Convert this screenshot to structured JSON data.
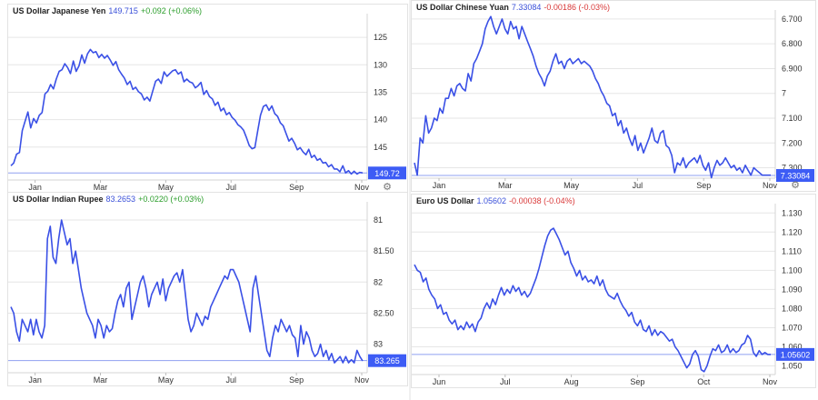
{
  "colors": {
    "line": "#3a50e6",
    "ref": "#8fa0f0",
    "badge": "#3d5cf5",
    "grid": "#e6e6e6",
    "axis": "#333333"
  },
  "icons": {
    "settings": "gear-icon"
  },
  "chart_data": [
    {
      "id": "jpy",
      "type": "line",
      "header": {
        "title": "US Dollar Japanese Yen",
        "price": "149.715",
        "change": "+0.092 (+0.06%)",
        "dir": "up"
      },
      "y_inverted": true,
      "ylim": [
        121.5,
        151
      ],
      "yticks": [
        125,
        130,
        135,
        140,
        145
      ],
      "ytick_labels": [
        "125",
        "130",
        "135",
        "140",
        "145"
      ],
      "x_ticks": [
        "Jan",
        "Mar",
        "May",
        "Jul",
        "Sep",
        "Nov"
      ],
      "last_badge": "149.72",
      "last_value": 149.72,
      "series": [
        {
          "values": [
            148.4,
            147.9,
            146.3,
            146.0,
            142.0,
            140.3,
            138.6,
            141.5,
            139.8,
            140.6,
            139.2,
            138.7,
            135.3,
            134.8,
            133.6,
            134.4,
            132.6,
            131.2,
            130.9,
            129.8,
            130.5,
            131.6,
            129.3,
            131.2,
            130.2,
            128.2,
            129.7,
            128.0,
            127.2,
            127.8,
            127.6,
            128.7,
            128.1,
            128.8,
            128.3,
            129.1,
            130.1,
            129.4,
            130.9,
            131.7,
            132.4,
            133.6,
            133.0,
            134.5,
            134.1,
            134.9,
            135.3,
            136.4,
            135.9,
            136.6,
            134.8,
            133.0,
            132.6,
            133.4,
            131.3,
            132.1,
            131.6,
            131.1,
            130.9,
            131.7,
            131.3,
            133.1,
            132.6,
            133.1,
            133.3,
            134.2,
            133.8,
            133.2,
            135.4,
            134.7,
            135.8,
            136.2,
            137.4,
            136.8,
            138.4,
            137.9,
            139.1,
            138.7,
            139.6,
            140.1,
            140.9,
            141.3,
            141.9,
            143.2,
            144.7,
            145.3,
            145.1,
            142.1,
            139.2,
            137.6,
            137.3,
            138.3,
            137.5,
            138.9,
            139.4,
            140.6,
            141.1,
            142.5,
            143.9,
            143.4,
            144.3,
            145.5,
            145.1,
            145.9,
            146.4,
            145.4,
            146.9,
            146.5,
            147.4,
            147.1,
            147.9,
            147.8,
            148.6,
            148.2,
            149.0,
            149.0,
            149.5,
            148.4,
            149.7,
            149.3,
            149.9,
            149.4,
            149.9,
            149.6,
            149.7
          ]
        }
      ]
    },
    {
      "id": "cny",
      "type": "line",
      "header": {
        "title": "US Dollar Chinese Yuan",
        "price": "7.33084",
        "change": "-0.00186 (-0.03%)",
        "dir": "down"
      },
      "y_inverted": true,
      "ylim": [
        6.682,
        7.342
      ],
      "yticks": [
        6.7,
        6.8,
        6.9,
        7.0,
        7.1,
        7.2,
        7.3
      ],
      "ytick_labels": [
        "6.700",
        "6.800",
        "6.900",
        "7",
        "7.100",
        "7.200",
        "7.300"
      ],
      "x_ticks": [
        "Jan",
        "Mar",
        "May",
        "Jul",
        "Sep",
        "Nov"
      ],
      "last_badge": "7.33084",
      "last_value": 7.331,
      "series": [
        {
          "values": [
            7.28,
            7.33,
            7.18,
            7.2,
            7.09,
            7.16,
            7.14,
            7.1,
            7.11,
            7.06,
            7.08,
            7.02,
            7.02,
            6.98,
            7.01,
            6.97,
            6.96,
            6.98,
            6.99,
            6.92,
            6.95,
            6.88,
            6.86,
            6.83,
            6.8,
            6.74,
            6.71,
            6.69,
            6.73,
            6.76,
            6.73,
            6.7,
            6.74,
            6.76,
            6.71,
            6.74,
            6.73,
            6.78,
            6.73,
            6.76,
            6.79,
            6.82,
            6.85,
            6.89,
            6.92,
            6.94,
            6.97,
            6.93,
            6.91,
            6.87,
            6.84,
            6.88,
            6.87,
            6.9,
            6.87,
            6.86,
            6.88,
            6.87,
            6.86,
            6.88,
            6.87,
            6.88,
            6.89,
            6.91,
            6.94,
            6.96,
            6.99,
            7.01,
            7.04,
            7.05,
            7.09,
            7.08,
            7.13,
            7.11,
            7.16,
            7.14,
            7.18,
            7.21,
            7.17,
            7.23,
            7.2,
            7.24,
            7.21,
            7.18,
            7.14,
            7.19,
            7.2,
            7.16,
            7.15,
            7.21,
            7.22,
            7.25,
            7.32,
            7.28,
            7.29,
            7.26,
            7.3,
            7.28,
            7.27,
            7.26,
            7.28,
            7.25,
            7.29,
            7.31,
            7.28,
            7.34,
            7.3,
            7.27,
            7.29,
            7.28,
            7.26,
            7.28,
            7.3,
            7.29,
            7.31,
            7.3,
            7.32,
            7.29,
            7.31,
            7.33,
            7.3,
            7.31,
            7.32,
            7.33,
            7.33,
            7.33,
            7.33
          ]
        }
      ]
    },
    {
      "id": "inr",
      "type": "line",
      "header": {
        "title": "US Dollar Indian Rupee",
        "price": "83.2653",
        "change": "+0.0220 (+0.03%)",
        "dir": "up"
      },
      "y_inverted": true,
      "ylim": [
        80.78,
        83.46
      ],
      "yticks": [
        81,
        81.5,
        82,
        82.5,
        83
      ],
      "ytick_labels": [
        "81",
        "81.50",
        "82",
        "82.50",
        "83"
      ],
      "x_ticks": [
        "Jan",
        "Mar",
        "May",
        "Jul",
        "Sep",
        "Nov"
      ],
      "last_badge": "83.265",
      "last_value": 83.265,
      "series": [
        {
          "values": [
            82.4,
            82.5,
            82.8,
            82.95,
            82.6,
            82.7,
            82.8,
            82.6,
            82.85,
            82.6,
            82.8,
            82.9,
            82.7,
            81.3,
            81.1,
            81.6,
            81.7,
            81.3,
            81.0,
            81.2,
            81.4,
            81.3,
            81.7,
            81.5,
            81.8,
            82.1,
            82.3,
            82.5,
            82.6,
            82.7,
            82.9,
            82.6,
            82.7,
            82.9,
            82.7,
            82.8,
            82.75,
            82.5,
            82.3,
            82.2,
            82.4,
            82.1,
            82.0,
            82.6,
            82.4,
            82.2,
            82.0,
            81.9,
            82.1,
            82.4,
            82.2,
            82.1,
            82.0,
            82.2,
            81.95,
            82.3,
            82.1,
            82.0,
            81.9,
            81.85,
            82.0,
            81.8,
            82.2,
            82.6,
            82.8,
            82.7,
            82.5,
            82.6,
            82.7,
            82.55,
            82.6,
            82.4,
            82.3,
            82.2,
            82.1,
            82.0,
            81.9,
            81.95,
            81.8,
            81.8,
            81.9,
            82.0,
            82.2,
            82.4,
            82.6,
            82.8,
            82.1,
            81.9,
            82.2,
            82.5,
            82.8,
            83.1,
            83.2,
            82.9,
            82.7,
            82.8,
            82.6,
            82.7,
            82.8,
            82.7,
            82.85,
            82.9,
            83.2,
            82.7,
            83.0,
            82.8,
            82.9,
            83.1,
            83.2,
            83.15,
            83.0,
            83.2,
            83.1,
            83.25,
            83.15,
            83.3,
            83.25,
            83.2,
            83.3,
            83.2,
            83.3,
            83.25,
            83.3,
            83.1,
            83.2,
            83.27
          ]
        }
      ]
    },
    {
      "id": "eur",
      "type": "line",
      "header": {
        "title": "Euro US Dollar",
        "price": "1.05602",
        "change": "-0.00038 (-0.04%)",
        "dir": "down"
      },
      "y_inverted": false,
      "ylim": [
        1.0455,
        1.1325
      ],
      "yticks": [
        1.05,
        1.06,
        1.07,
        1.08,
        1.09,
        1.1,
        1.11,
        1.12,
        1.13
      ],
      "ytick_labels": [
        "1.050",
        "1.060",
        "1.070",
        "1.080",
        "1.090",
        "1.100",
        "1.110",
        "1.120",
        "1.130"
      ],
      "x_ticks": [
        "Jun",
        "Jul",
        "Aug",
        "Sep",
        "Oct",
        "Nov"
      ],
      "last_badge": "1.05602",
      "last_value": 1.05602,
      "series": [
        {
          "values": [
            1.103,
            1.1,
            1.099,
            1.094,
            1.096,
            1.09,
            1.087,
            1.085,
            1.08,
            1.082,
            1.077,
            1.078,
            1.074,
            1.072,
            1.074,
            1.069,
            1.071,
            1.069,
            1.073,
            1.07,
            1.072,
            1.068,
            1.073,
            1.075,
            1.08,
            1.083,
            1.08,
            1.085,
            1.082,
            1.087,
            1.091,
            1.087,
            1.09,
            1.088,
            1.092,
            1.089,
            1.091,
            1.087,
            1.089,
            1.086,
            1.088,
            1.092,
            1.096,
            1.101,
            1.107,
            1.113,
            1.118,
            1.121,
            1.122,
            1.119,
            1.116,
            1.112,
            1.108,
            1.11,
            1.104,
            1.101,
            1.097,
            1.1,
            1.095,
            1.097,
            1.094,
            1.095,
            1.093,
            1.097,
            1.092,
            1.095,
            1.09,
            1.087,
            1.086,
            1.085,
            1.088,
            1.084,
            1.081,
            1.079,
            1.076,
            1.078,
            1.073,
            1.071,
            1.074,
            1.069,
            1.068,
            1.071,
            1.066,
            1.069,
            1.066,
            1.068,
            1.067,
            1.065,
            1.063,
            1.064,
            1.06,
            1.058,
            1.055,
            1.052,
            1.049,
            1.051,
            1.056,
            1.058,
            1.055,
            1.048,
            1.047,
            1.05,
            1.055,
            1.059,
            1.058,
            1.061,
            1.057,
            1.058,
            1.061,
            1.057,
            1.059,
            1.057,
            1.058,
            1.061,
            1.062,
            1.066,
            1.064,
            1.057,
            1.055,
            1.058,
            1.056,
            1.057,
            1.056,
            1.056
          ]
        }
      ]
    }
  ]
}
